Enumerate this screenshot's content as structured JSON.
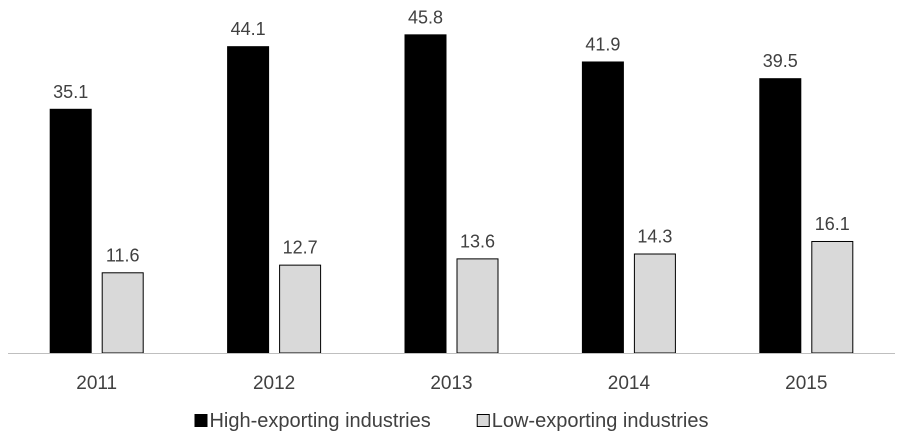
{
  "chart_data": {
    "type": "bar",
    "title": "",
    "xlabel": "",
    "ylabel": "",
    "categories": [
      "2011",
      "2012",
      "2013",
      "2014",
      "2015"
    ],
    "series": [
      {
        "name": "High-exporting industries",
        "values": [
          35.1,
          44.1,
          45.8,
          41.9,
          39.5
        ],
        "color": "#000000",
        "stroke": "#000000"
      },
      {
        "name": "Low-exporting industries",
        "values": [
          11.6,
          12.7,
          13.6,
          14.3,
          16.1
        ],
        "color": "#d9d9d9",
        "stroke": "#000000"
      }
    ],
    "ylim": [
      0,
      47
    ],
    "grid": false,
    "legend_position": "bottom",
    "data_labels": true
  }
}
